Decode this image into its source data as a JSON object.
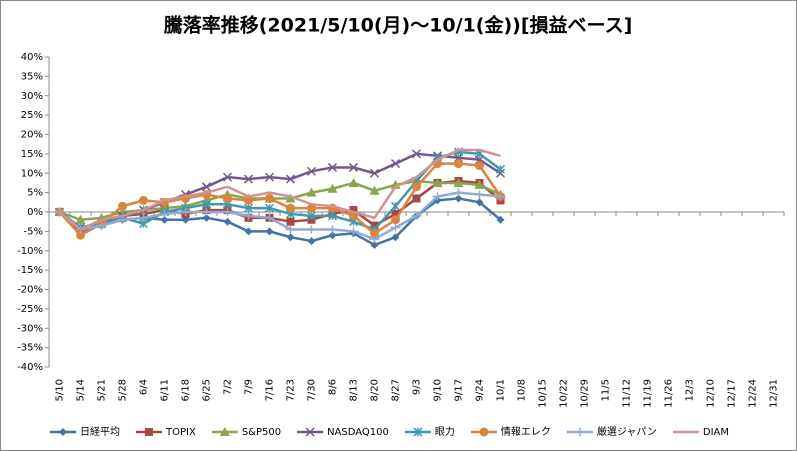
{
  "chart_data": {
    "type": "line",
    "title": "騰落率推移(2021/5/10(月)～10/1(金))[損益ベース]",
    "categories": [
      "5/10",
      "5/14",
      "5/21",
      "5/28",
      "6/4",
      "6/11",
      "6/18",
      "6/25",
      "7/2",
      "7/9",
      "7/16",
      "7/23",
      "7/30",
      "8/6",
      "8/13",
      "8/20",
      "8/27",
      "9/3",
      "9/10",
      "9/17",
      "9/24",
      "10/1",
      "10/8",
      "10/15",
      "10/22",
      "10/29",
      "11/5",
      "11/12",
      "11/19",
      "11/26",
      "12/3",
      "12/10",
      "12/17",
      "12/24",
      "12/31"
    ],
    "series": [
      {
        "name": "日経平均",
        "color": "#4572A7",
        "marker": "diamond",
        "values": [
          0,
          -4,
          -3.5,
          -2,
          -1.5,
          -2,
          -2,
          -1.5,
          -2.5,
          -5,
          -5,
          -6.5,
          -7.5,
          -6,
          -5.5,
          -8.5,
          -6.5,
          -1,
          3,
          3.5,
          2.5,
          -2,
          null,
          null,
          null,
          null,
          null,
          null,
          null,
          null,
          null,
          null,
          null,
          null,
          null
        ]
      },
      {
        "name": "TOPIX",
        "color": "#AA4643",
        "marker": "square",
        "values": [
          0,
          -5,
          -3,
          -1,
          -0.5,
          0.5,
          -0.5,
          0.5,
          0.5,
          -1.5,
          -1.5,
          -2.5,
          -2,
          -0.5,
          0.5,
          -3.5,
          -0.5,
          3.5,
          7.5,
          8,
          7.5,
          3,
          null,
          null,
          null,
          null,
          null,
          null,
          null,
          null,
          null,
          null,
          null,
          null,
          null
        ]
      },
      {
        "name": "S&P500",
        "color": "#89A54E",
        "marker": "triangle",
        "values": [
          0,
          -2,
          -1.5,
          0,
          0.5,
          1,
          1.5,
          3,
          4.5,
          3.5,
          3.5,
          3.5,
          5,
          6,
          7.5,
          5.5,
          7,
          8,
          7.5,
          7.5,
          7,
          4.5,
          null,
          null,
          null,
          null,
          null,
          null,
          null,
          null,
          null,
          null,
          null,
          null,
          null
        ]
      },
      {
        "name": "NASDAQ100",
        "color": "#71588F",
        "marker": "x",
        "values": [
          0,
          -4,
          -3,
          -1,
          0.5,
          2.5,
          4.5,
          6.5,
          9,
          8.5,
          9,
          8.5,
          10.5,
          11.5,
          11.5,
          10,
          12.5,
          15,
          14.5,
          14,
          13.5,
          10,
          null,
          null,
          null,
          null,
          null,
          null,
          null,
          null,
          null,
          null,
          null,
          null,
          null
        ]
      },
      {
        "name": "眼力",
        "color": "#4198AF",
        "marker": "star",
        "values": [
          0,
          -4,
          -3,
          -1.5,
          -3,
          0,
          1,
          2,
          2,
          1,
          1,
          -0.5,
          -1,
          -1,
          -2.5,
          -4.5,
          1.5,
          8,
          14,
          15.5,
          15,
          11,
          null,
          null,
          null,
          null,
          null,
          null,
          null,
          null,
          null,
          null,
          null,
          null,
          null
        ]
      },
      {
        "name": "情報エレク",
        "color": "#DB843D",
        "marker": "circle",
        "values": [
          0,
          -6,
          -3,
          1.5,
          3,
          2.5,
          3.5,
          4.5,
          3.5,
          3,
          3.5,
          1,
          1,
          1,
          -1,
          -5.5,
          -2,
          6.5,
          12.5,
          12.5,
          12,
          4,
          null,
          null,
          null,
          null,
          null,
          null,
          null,
          null,
          null,
          null,
          null,
          null,
          null
        ]
      },
      {
        "name": "厳選ジャパン",
        "color": "#93A9CF",
        "marker": "plus",
        "values": [
          0,
          -4.5,
          -3.5,
          -2,
          -1.5,
          -0.5,
          0,
          0,
          0,
          -1,
          -1.5,
          -4.5,
          -4.5,
          -4.5,
          -5,
          -7,
          -4,
          -1,
          4,
          5,
          4.5,
          4,
          null,
          null,
          null,
          null,
          null,
          null,
          null,
          null,
          null,
          null,
          null,
          null,
          null
        ]
      },
      {
        "name": "DIAM",
        "color": "#D19392",
        "marker": "none",
        "values": [
          0,
          -4.5,
          -2,
          -1,
          0.5,
          3,
          4,
          5,
          6.5,
          4,
          5,
          4,
          2,
          1.5,
          0,
          -1.5,
          6.5,
          9,
          13.5,
          16,
          16,
          14.5,
          null,
          null,
          null,
          null,
          null,
          null,
          null,
          null,
          null,
          null,
          null,
          null,
          null
        ]
      }
    ],
    "ylim": [
      -40,
      40
    ],
    "yticks": [
      {
        "value": -40,
        "label": "-40%"
      },
      {
        "value": -35,
        "label": "-35%"
      },
      {
        "value": -30,
        "label": "-30%"
      },
      {
        "value": -25,
        "label": "-25%"
      },
      {
        "value": -20,
        "label": "-20%"
      },
      {
        "value": -15,
        "label": "-15%"
      },
      {
        "value": -10,
        "label": "-10%"
      },
      {
        "value": -5,
        "label": "-5%"
      },
      {
        "value": 0,
        "label": "0%"
      },
      {
        "value": 5,
        "label": "5%"
      },
      {
        "value": 10,
        "label": "10%"
      },
      {
        "value": 15,
        "label": "15%"
      },
      {
        "value": 20,
        "label": "20%"
      },
      {
        "value": 25,
        "label": "25%"
      },
      {
        "value": 30,
        "label": "30%"
      },
      {
        "value": 35,
        "label": "35%"
      },
      {
        "value": 40,
        "label": "40%"
      }
    ],
    "grid": false,
    "legend": "bottom"
  }
}
